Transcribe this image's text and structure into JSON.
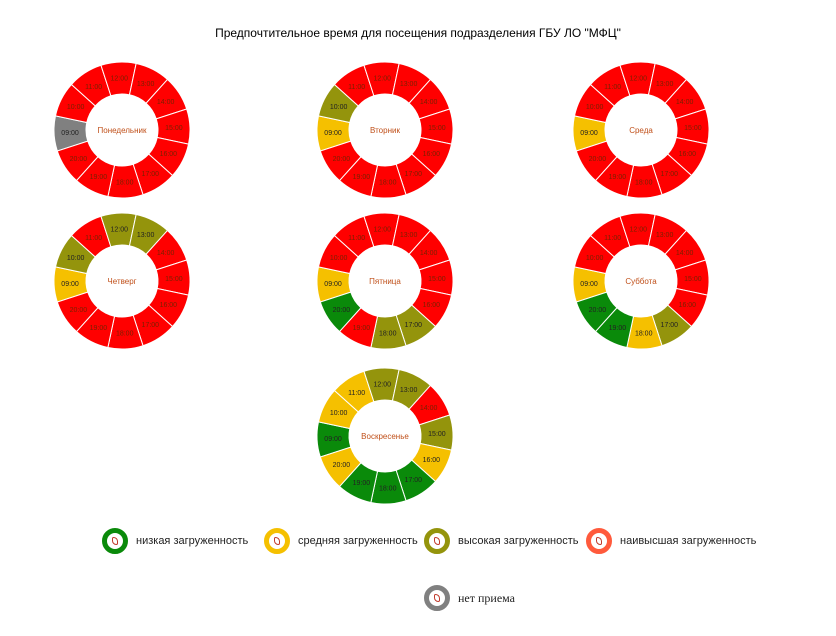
{
  "title": "Предпочтительное время для посещения подразделения ГБУ ЛО \"МФЦ\"",
  "colors": {
    "low": "#0a8a0a",
    "medium": "#f5c000",
    "high": "#94940c",
    "highest": "#ff0000",
    "none": "#808080"
  },
  "chart_data": [
    {
      "type": "donut",
      "title": "Понедельник",
      "categories": [
        "09:00",
        "10:00",
        "11:00",
        "12:00",
        "13:00",
        "14:00",
        "15:00",
        "16:00",
        "17:00",
        "18:00",
        "19:00",
        "20:00"
      ],
      "values": [
        1,
        1,
        1,
        1,
        1,
        1,
        1,
        1,
        1,
        1,
        1,
        1
      ],
      "load": [
        "none",
        "highest",
        "highest",
        "highest",
        "highest",
        "highest",
        "highest",
        "highest",
        "highest",
        "highest",
        "highest",
        "highest"
      ]
    },
    {
      "type": "donut",
      "title": "Вторник",
      "categories": [
        "09:00",
        "10:00",
        "11:00",
        "12:00",
        "13:00",
        "14:00",
        "15:00",
        "16:00",
        "17:00",
        "18:00",
        "19:00",
        "20:00"
      ],
      "values": [
        1,
        1,
        1,
        1,
        1,
        1,
        1,
        1,
        1,
        1,
        1,
        1
      ],
      "load": [
        "medium",
        "high",
        "highest",
        "highest",
        "highest",
        "highest",
        "highest",
        "highest",
        "highest",
        "highest",
        "highest",
        "highest"
      ]
    },
    {
      "type": "donut",
      "title": "Среда",
      "categories": [
        "09:00",
        "10:00",
        "11:00",
        "12:00",
        "13:00",
        "14:00",
        "15:00",
        "16:00",
        "17:00",
        "18:00",
        "19:00",
        "20:00"
      ],
      "values": [
        1,
        1,
        1,
        1,
        1,
        1,
        1,
        1,
        1,
        1,
        1,
        1
      ],
      "load": [
        "medium",
        "highest",
        "highest",
        "highest",
        "highest",
        "highest",
        "highest",
        "highest",
        "highest",
        "highest",
        "highest",
        "highest"
      ]
    },
    {
      "type": "donut",
      "title": "Четверг",
      "categories": [
        "09:00",
        "10:00",
        "11:00",
        "12:00",
        "13:00",
        "14:00",
        "15:00",
        "16:00",
        "17:00",
        "18:00",
        "19:00",
        "20:00"
      ],
      "values": [
        1,
        1,
        1,
        1,
        1,
        1,
        1,
        1,
        1,
        1,
        1,
        1
      ],
      "load": [
        "medium",
        "high",
        "highest",
        "high",
        "high",
        "highest",
        "highest",
        "highest",
        "highest",
        "highest",
        "highest",
        "highest"
      ]
    },
    {
      "type": "donut",
      "title": "Пятница",
      "categories": [
        "09:00",
        "10:00",
        "11:00",
        "12:00",
        "13:00",
        "14:00",
        "15:00",
        "16:00",
        "17:00",
        "18:00",
        "19:00",
        "20:00"
      ],
      "values": [
        1,
        1,
        1,
        1,
        1,
        1,
        1,
        1,
        1,
        1,
        1,
        1
      ],
      "load": [
        "medium",
        "highest",
        "highest",
        "highest",
        "highest",
        "highest",
        "highest",
        "highest",
        "high",
        "high",
        "highest",
        "low"
      ]
    },
    {
      "type": "donut",
      "title": "Суббота",
      "categories": [
        "09:00",
        "10:00",
        "11:00",
        "12:00",
        "13:00",
        "14:00",
        "15:00",
        "16:00",
        "17:00",
        "18:00",
        "19:00",
        "20:00"
      ],
      "values": [
        1,
        1,
        1,
        1,
        1,
        1,
        1,
        1,
        1,
        1,
        1,
        1
      ],
      "load": [
        "medium",
        "highest",
        "highest",
        "highest",
        "highest",
        "highest",
        "highest",
        "highest",
        "high",
        "medium",
        "low",
        "low"
      ]
    },
    {
      "type": "donut",
      "title": "Воскресенье",
      "categories": [
        "09:00",
        "10:00",
        "11:00",
        "12:00",
        "13:00",
        "14:00",
        "15:00",
        "16:00",
        "17:00",
        "18:00",
        "19:00",
        "20:00"
      ],
      "values": [
        1,
        1,
        1,
        1,
        1,
        1,
        1,
        1,
        1,
        1,
        1,
        1
      ],
      "load": [
        "low",
        "medium",
        "medium",
        "high",
        "high",
        "highest",
        "high",
        "medium",
        "low",
        "low",
        "low",
        "medium"
      ]
    }
  ],
  "legend": [
    {
      "key": "low",
      "label": "низкая загруженность"
    },
    {
      "key": "medium",
      "label": "средняя загруженность"
    },
    {
      "key": "high",
      "label": "высокая загруженность"
    },
    {
      "key": "highest",
      "label": "наивысшая загруженность"
    },
    {
      "key": "none",
      "label": "нет приема"
    }
  ]
}
